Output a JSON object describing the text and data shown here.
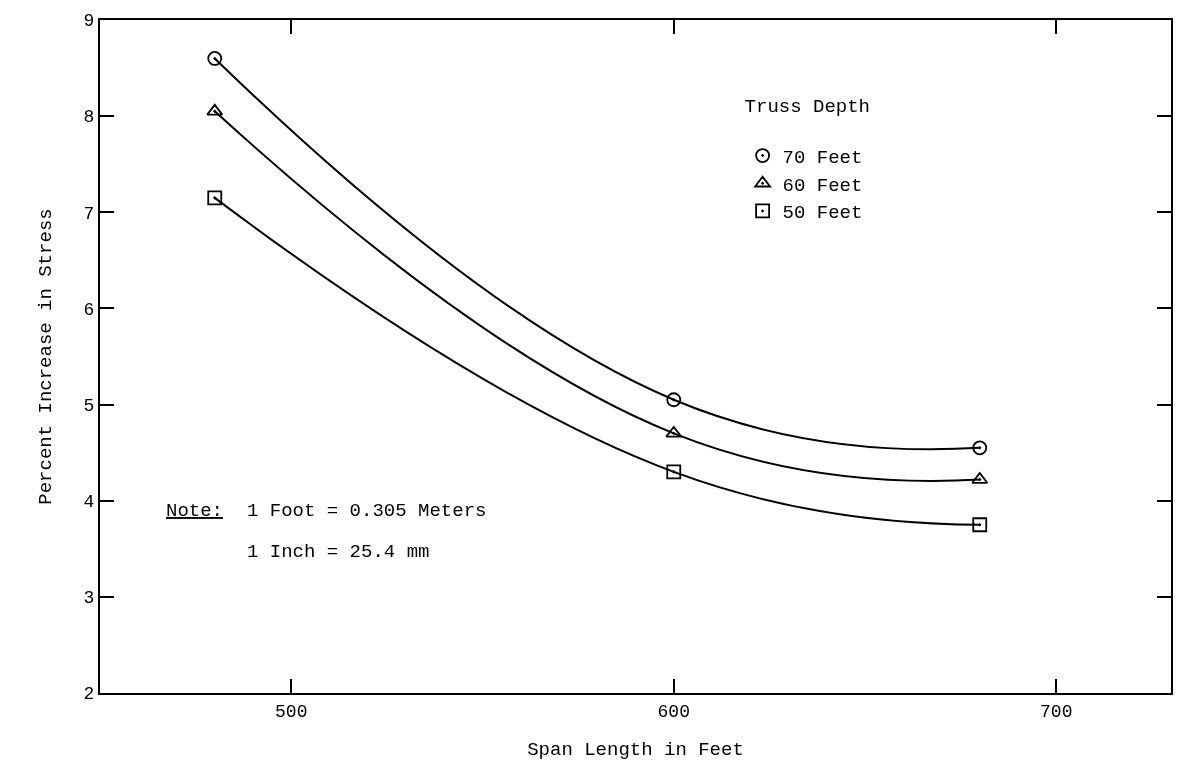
{
  "chart_data": {
    "type": "line",
    "xlabel": "Span Length in Feet",
    "ylabel": "Percent Increase in Stress",
    "legend_title": "Truss Depth",
    "x": [
      480,
      600,
      680
    ],
    "series": [
      {
        "name": "70 Feet",
        "color": "#000000",
        "marker": "circle",
        "values": [
          8.6,
          5.05,
          4.55
        ]
      },
      {
        "name": "60 Feet",
        "color": "#000000",
        "marker": "triangle",
        "values": [
          8.05,
          4.7,
          4.22
        ]
      },
      {
        "name": "50 Feet",
        "color": "#000000",
        "marker": "square",
        "values": [
          7.15,
          4.3,
          3.75
        ]
      }
    ],
    "xlim": [
      450,
      730
    ],
    "xticks": [
      500,
      600,
      700
    ],
    "ylim": [
      2,
      9
    ],
    "yticks": [
      2,
      3,
      4,
      5,
      6,
      7,
      8,
      9
    ],
    "grid": false,
    "legend": "top right",
    "line_style": "solid",
    "annotations": [
      "Note:",
      "1 Foot = 0.305 Meters",
      "1 Inch = 25.4 mm"
    ]
  }
}
